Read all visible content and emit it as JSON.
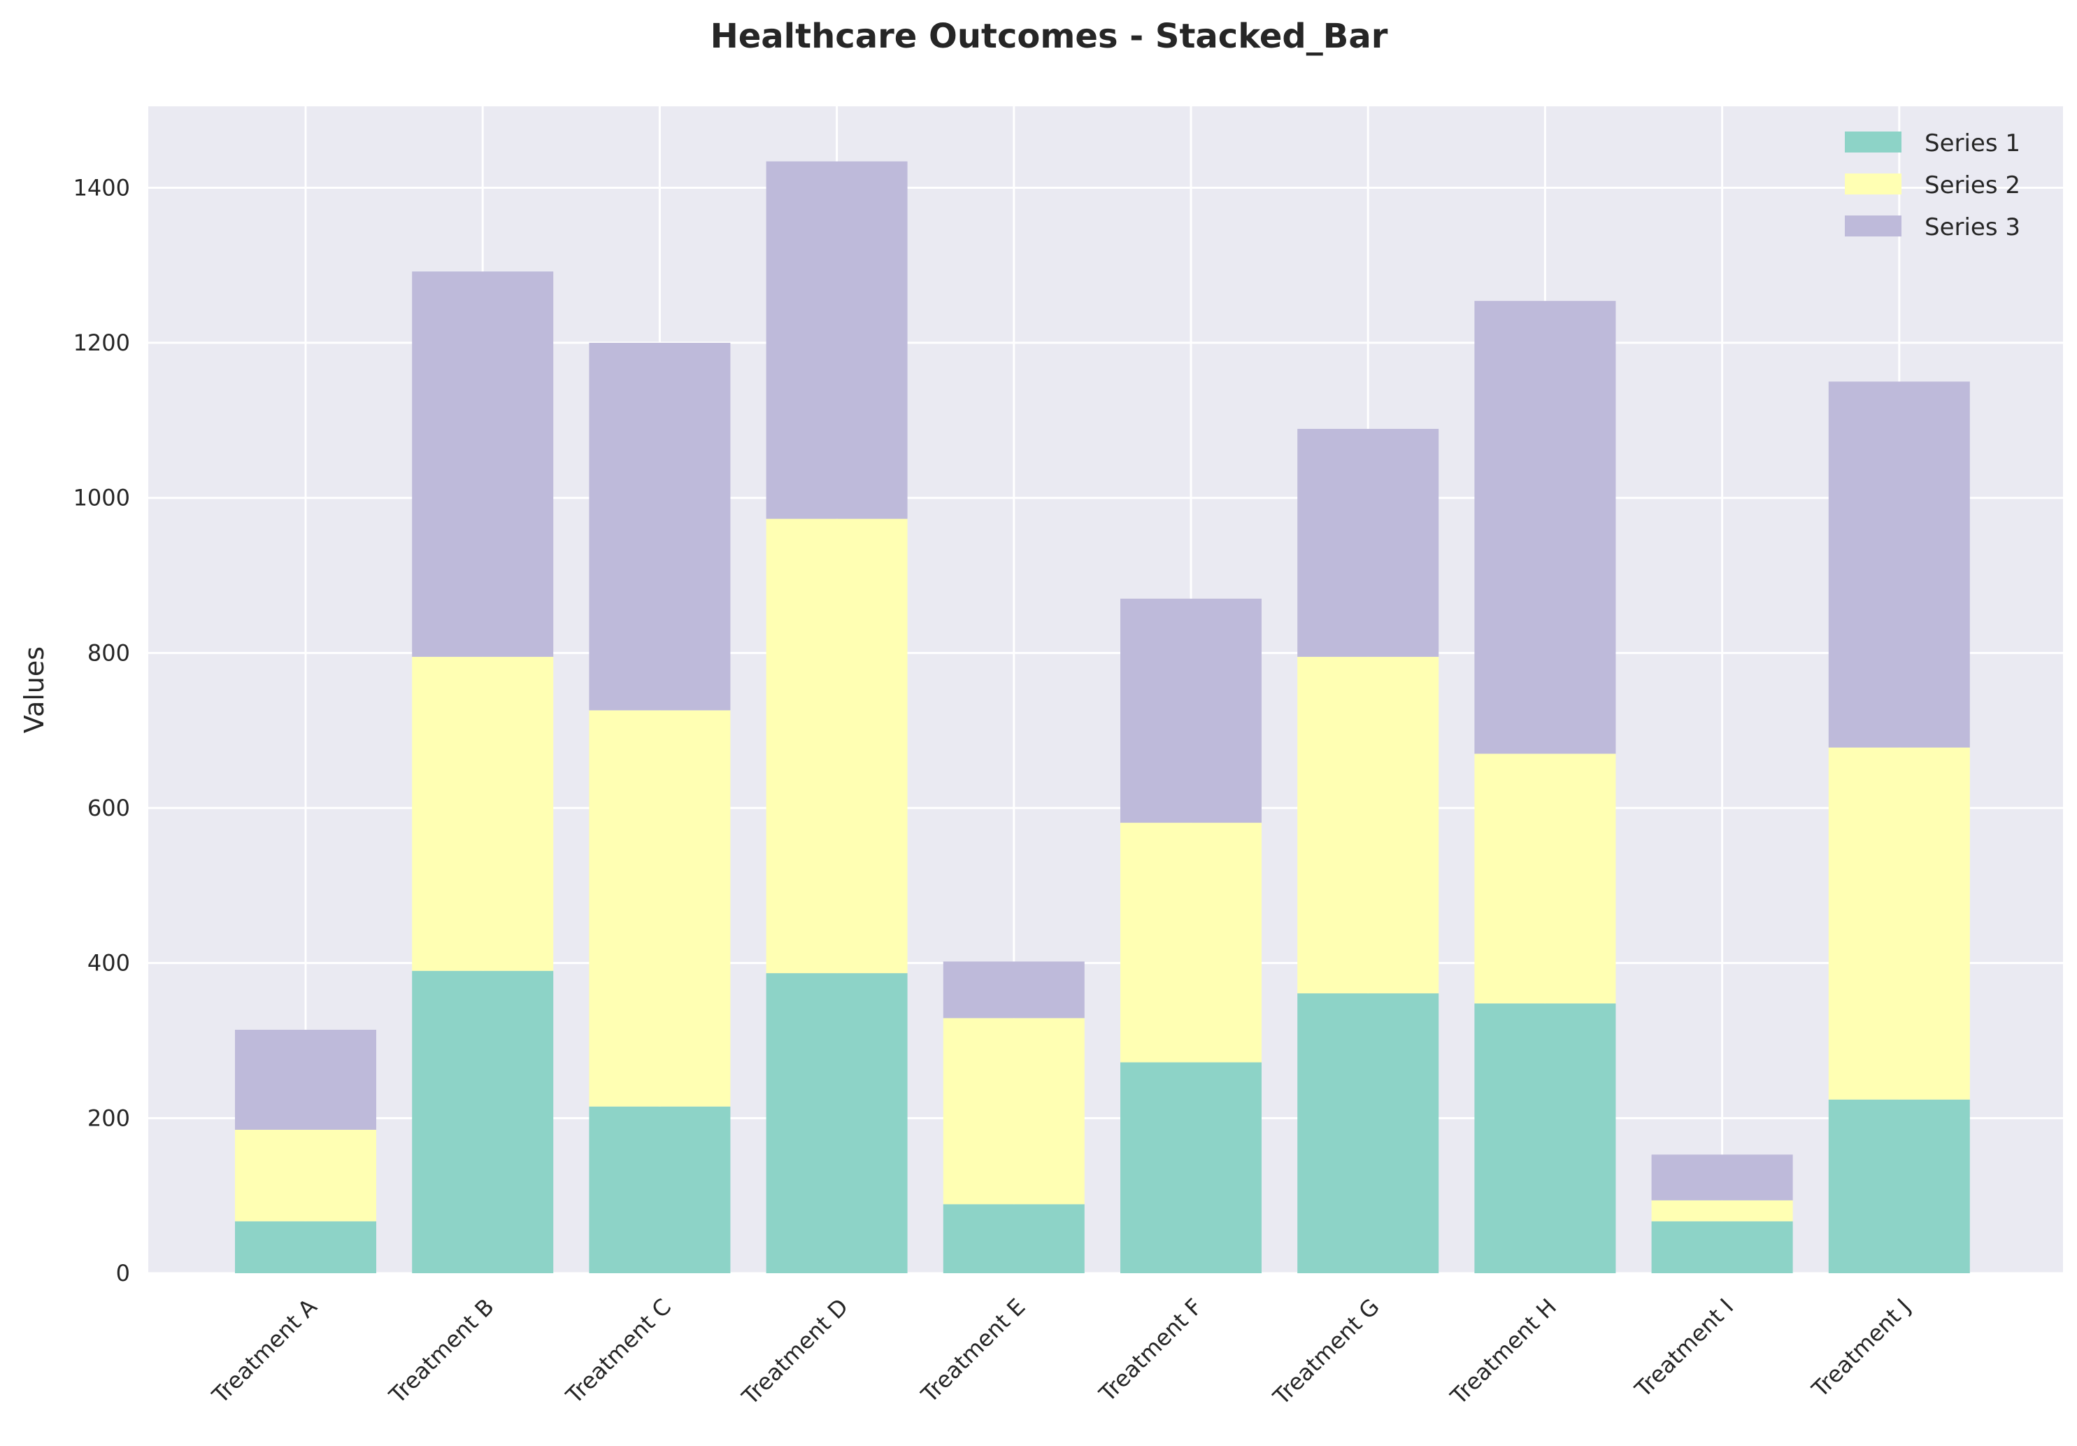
{
  "chart_data": {
    "type": "bar",
    "stacked": true,
    "title": "Healthcare Outcomes - Stacked_Bar",
    "xlabel": "",
    "ylabel": "Values",
    "ylim": [
      0,
      1505
    ],
    "yticks": [
      0,
      200,
      400,
      600,
      800,
      1000,
      1200,
      1400
    ],
    "grid": true,
    "legend_position": "top-right",
    "categories": [
      "Treatment A",
      "Treatment B",
      "Treatment C",
      "Treatment D",
      "Treatment E",
      "Treatment F",
      "Treatment G",
      "Treatment H",
      "Treatment I",
      "Treatment J"
    ],
    "series": [
      {
        "name": "Series 1",
        "color": "#8dd3c7",
        "values": [
          67,
          390,
          215,
          387,
          89,
          272,
          361,
          348,
          67,
          224
        ]
      },
      {
        "name": "Series 2",
        "color": "#ffffb3",
        "values": [
          118,
          405,
          511,
          586,
          240,
          309,
          434,
          322,
          27,
          454
        ]
      },
      {
        "name": "Series 3",
        "color": "#bebada",
        "values": [
          129,
          497,
          474,
          461,
          73,
          289,
          294,
          584,
          59,
          472
        ]
      }
    ],
    "colors": {
      "plot_background": "#eaeaf2",
      "grid": "#ffffff",
      "text": "#262626"
    }
  }
}
